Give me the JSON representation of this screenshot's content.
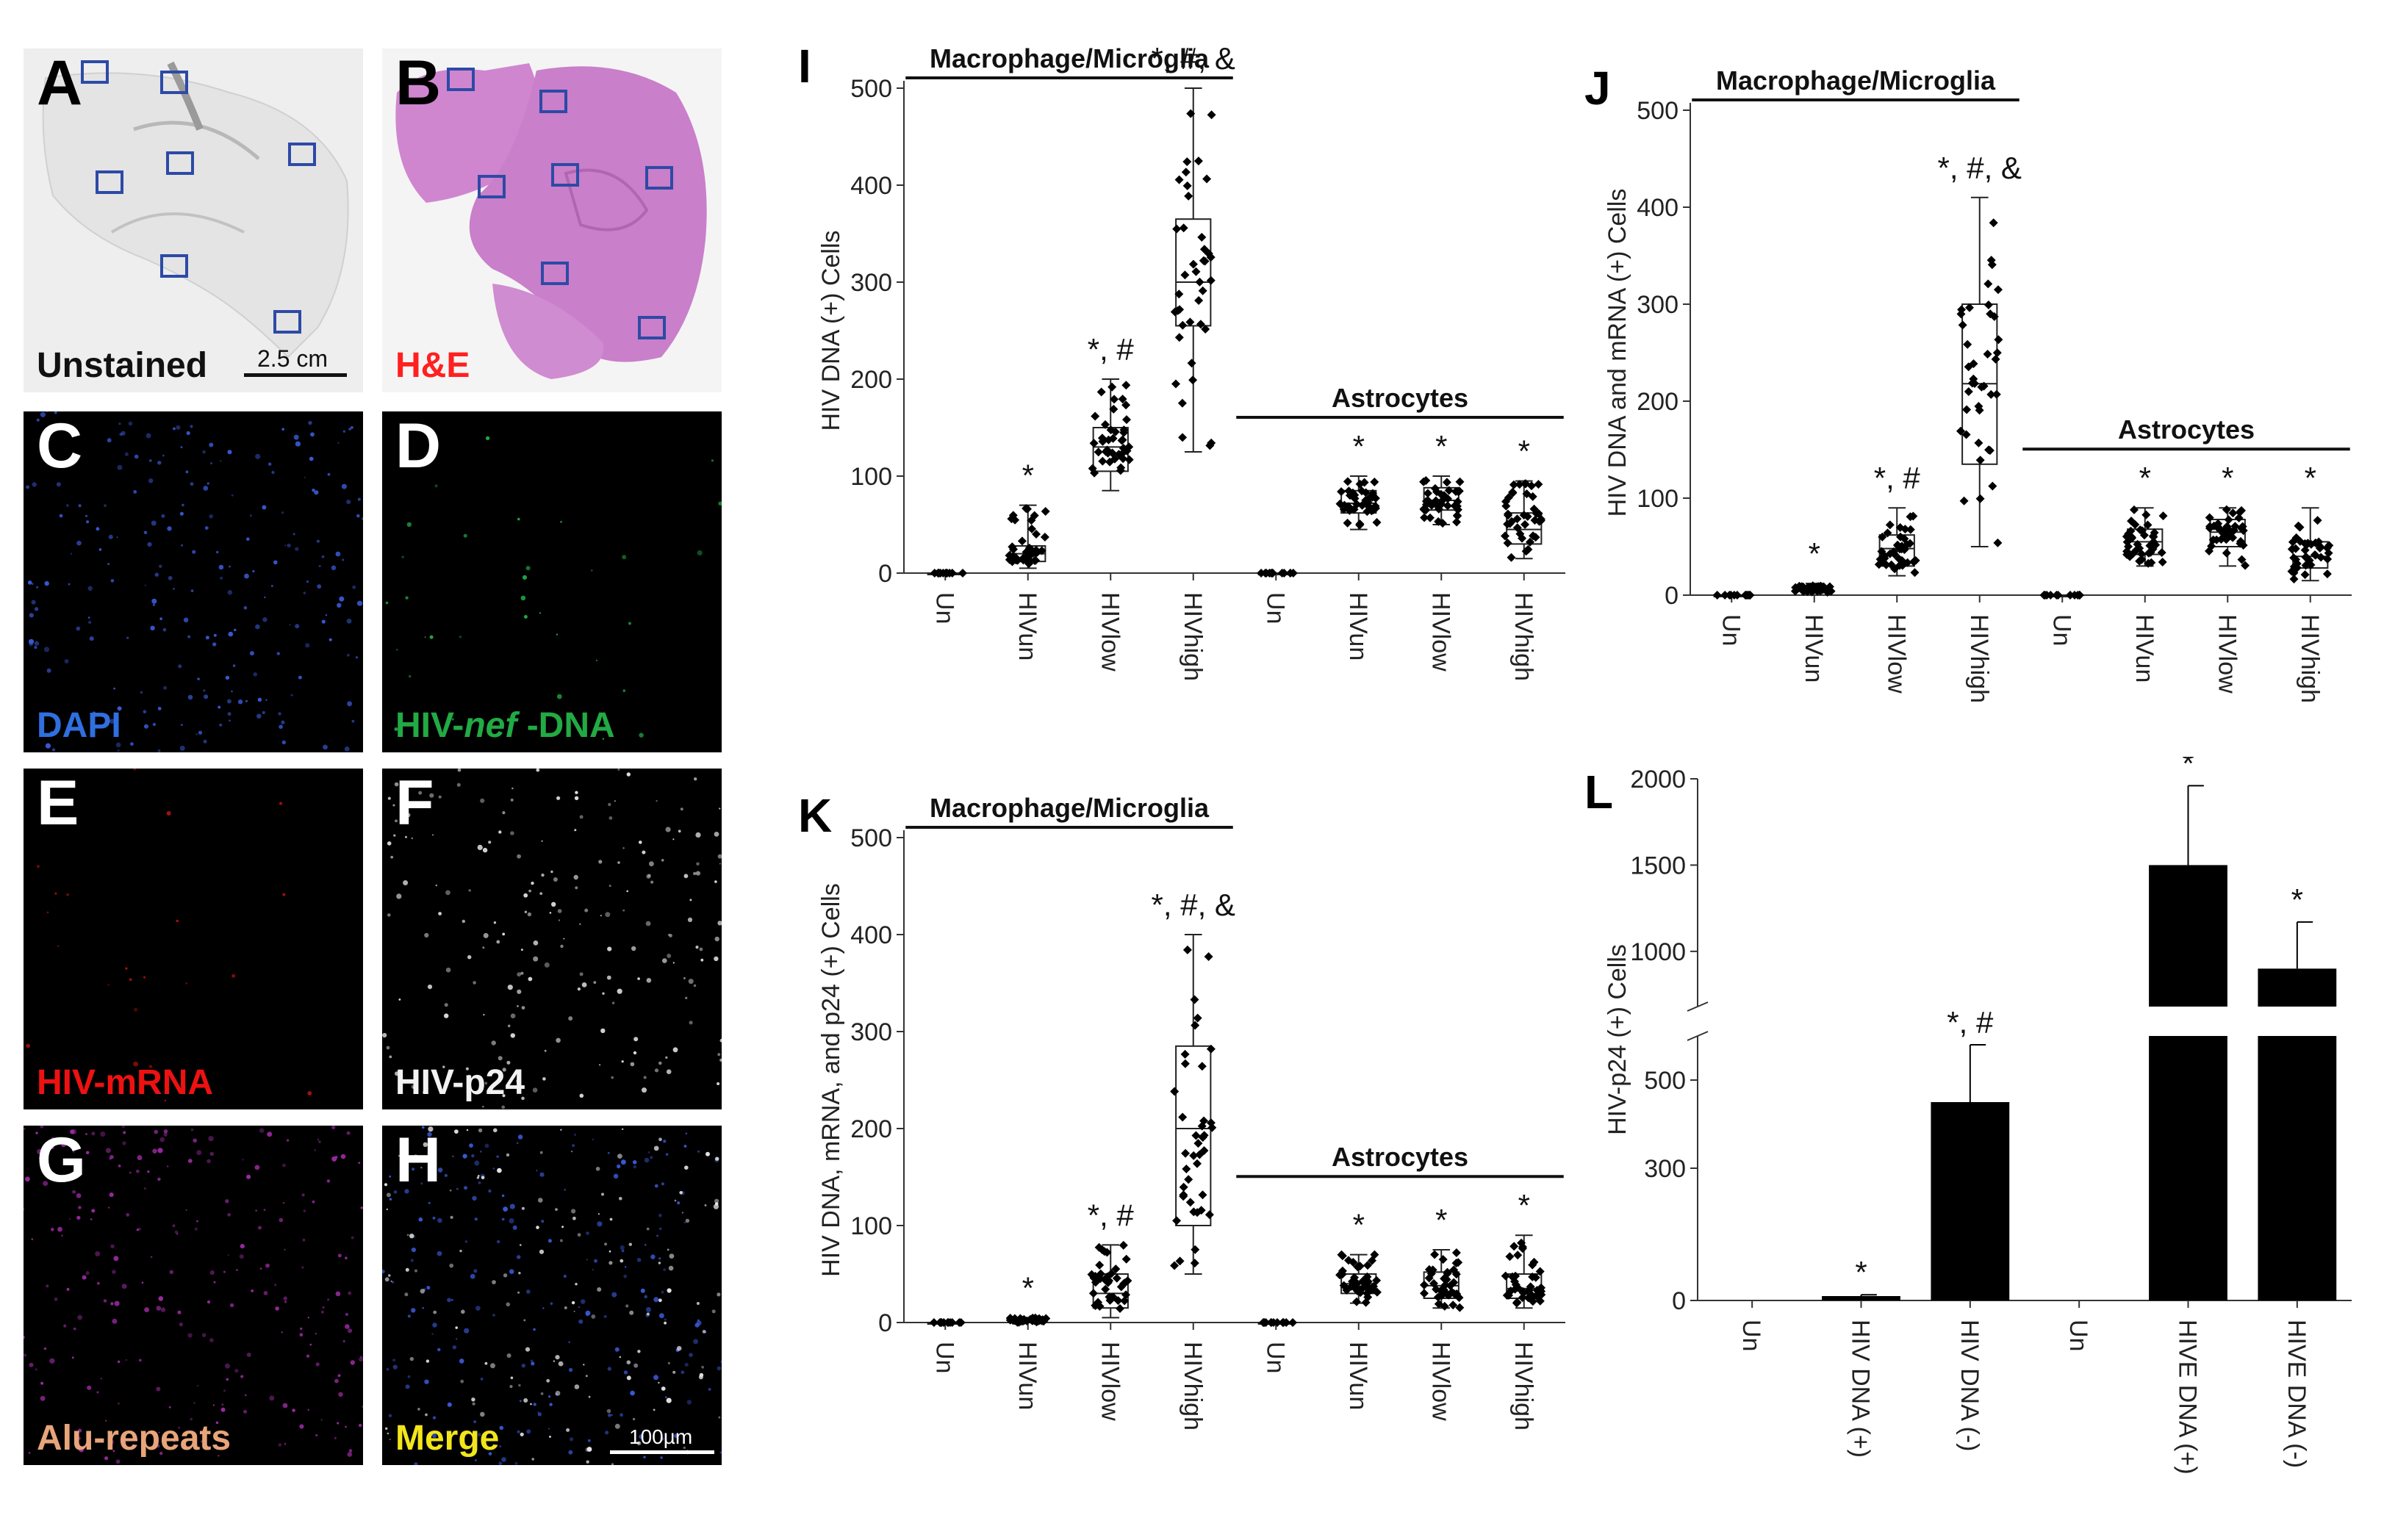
{
  "colors": {
    "roi_box": "#2d4aa6",
    "label_dapi": "#2f6fe0",
    "label_dna": "#22aa44",
    "label_mrna": "#ee1111",
    "label_p24": "#f2f2f2",
    "label_alu": "#e8a47a",
    "label_merge": "#f2e51a",
    "label_he": "#ff2020",
    "he_tissue": "#c97fc9"
  },
  "tiles": {
    "A": {
      "letter": "A",
      "label": "Unstained",
      "scale": "2.5 cm"
    },
    "B": {
      "letter": "B",
      "label": "H&E"
    },
    "C": {
      "letter": "C",
      "label": "DAPI"
    },
    "D": {
      "letter": "D",
      "label_pre": "HIV-",
      "label_italic": "nef",
      "label_post": " -DNA"
    },
    "E": {
      "letter": "E",
      "label": "HIV-mRNA"
    },
    "F": {
      "letter": "F",
      "label": "HIV-p24"
    },
    "G": {
      "letter": "G",
      "label": "Alu-repeats"
    },
    "H": {
      "letter": "H",
      "label": "Merge",
      "scale": "100µm"
    }
  },
  "chart_data": [
    {
      "panel": "I",
      "type": "scatter",
      "ylabel": "HIV DNA (+) Cells",
      "ylim": [
        0,
        500
      ],
      "yticks": [
        0,
        100,
        200,
        300,
        400,
        500
      ],
      "categories": [
        "Un",
        "HIVun",
        "HIVlow",
        "HIVhigh",
        "Un",
        "HIVun",
        "HIVlow",
        "HIVhigh"
      ],
      "groups": [
        {
          "label": "Macrophage/Microglia",
          "from": 0,
          "to": 3
        },
        {
          "label": "Astrocytes",
          "from": 4,
          "to": 7
        }
      ],
      "boxes": [
        {
          "min": 0,
          "q1": 0,
          "median": 0,
          "q3": 0,
          "max": 0
        },
        {
          "min": 5,
          "q1": 12,
          "median": 20,
          "q3": 28,
          "max": 70
        },
        {
          "min": 85,
          "q1": 105,
          "median": 130,
          "q3": 150,
          "max": 200
        },
        {
          "min": 125,
          "q1": 255,
          "median": 300,
          "q3": 365,
          "max": 500
        },
        {
          "min": 0,
          "q1": 0,
          "median": 0,
          "q3": 0,
          "max": 0
        },
        {
          "min": 45,
          "q1": 62,
          "median": 72,
          "q3": 85,
          "max": 100
        },
        {
          "min": 50,
          "q1": 65,
          "median": 75,
          "q3": 88,
          "max": 100
        },
        {
          "min": 15,
          "q1": 30,
          "median": 45,
          "q3": 62,
          "max": 95
        }
      ],
      "annotations": [
        "",
        "*",
        "*, #",
        "*, #, &",
        "",
        "*",
        "*",
        "*"
      ]
    },
    {
      "panel": "J",
      "type": "scatter",
      "ylabel": "HIV DNA and mRNA (+) Cells",
      "ylim": [
        0,
        500
      ],
      "yticks": [
        0,
        100,
        200,
        300,
        400,
        500
      ],
      "categories": [
        "Un",
        "HIVun",
        "HIVlow",
        "HIVhigh",
        "Un",
        "HIVun",
        "HIVlow",
        "HIVhigh"
      ],
      "groups": [
        {
          "label": "Macrophage/Microglia",
          "from": 0,
          "to": 3
        },
        {
          "label": "Astrocytes",
          "from": 4,
          "to": 7
        }
      ],
      "boxes": [
        {
          "min": 0,
          "q1": 0,
          "median": 0,
          "q3": 0,
          "max": 0
        },
        {
          "min": 2,
          "q1": 4,
          "median": 7,
          "q3": 9,
          "max": 12
        },
        {
          "min": 20,
          "q1": 30,
          "median": 48,
          "q3": 62,
          "max": 90
        },
        {
          "min": 50,
          "q1": 135,
          "median": 218,
          "q3": 300,
          "max": 410
        },
        {
          "min": 0,
          "q1": 0,
          "median": 0,
          "q3": 0,
          "max": 0
        },
        {
          "min": 30,
          "q1": 42,
          "median": 55,
          "q3": 68,
          "max": 90
        },
        {
          "min": 30,
          "q1": 50,
          "median": 65,
          "q3": 78,
          "max": 90
        },
        {
          "min": 15,
          "q1": 28,
          "median": 40,
          "q3": 55,
          "max": 90
        }
      ],
      "annotations": [
        "",
        "*",
        "*, #",
        "*, #, &",
        "",
        "*",
        "*",
        "*"
      ]
    },
    {
      "panel": "K",
      "type": "scatter",
      "ylabel": "HIV DNA, mRNA, and p24 (+) Cells",
      "ylim": [
        0,
        500
      ],
      "yticks": [
        0,
        100,
        200,
        300,
        400,
        500
      ],
      "categories": [
        "Un",
        "HIVun",
        "HIVlow",
        "HIVhigh",
        "Un",
        "HIVun",
        "HIVlow",
        "HIVhigh"
      ],
      "groups": [
        {
          "label": "Macrophage/Microglia",
          "from": 0,
          "to": 3
        },
        {
          "label": "Astrocytes",
          "from": 4,
          "to": 7
        }
      ],
      "boxes": [
        {
          "min": 0,
          "q1": 0,
          "median": 0,
          "q3": 0,
          "max": 0
        },
        {
          "min": 0,
          "q1": 1,
          "median": 2,
          "q3": 3,
          "max": 5
        },
        {
          "min": 5,
          "q1": 15,
          "median": 30,
          "q3": 50,
          "max": 80
        },
        {
          "min": 50,
          "q1": 100,
          "median": 200,
          "q3": 285,
          "max": 400
        },
        {
          "min": 0,
          "q1": 0,
          "median": 0,
          "q3": 0,
          "max": 0
        },
        {
          "min": 20,
          "q1": 30,
          "median": 40,
          "q3": 50,
          "max": 70
        },
        {
          "min": 15,
          "q1": 25,
          "median": 38,
          "q3": 52,
          "max": 75
        },
        {
          "min": 15,
          "q1": 25,
          "median": 35,
          "q3": 50,
          "max": 90
        }
      ],
      "annotations": [
        "",
        "*",
        "*, #",
        "*, #, &",
        "",
        "*",
        "*",
        "*"
      ]
    },
    {
      "panel": "L",
      "type": "bar",
      "ylabel": "HIV-p24 (+) Cells",
      "categories": [
        "Un",
        "HIV DNA (+)",
        "HIV DNA (-)",
        "Un",
        "HIVE DNA (+)",
        "HIVE DNA (-)"
      ],
      "values": [
        0,
        10,
        450,
        0,
        1500,
        900
      ],
      "errors": [
        0,
        3,
        130,
        0,
        460,
        270
      ],
      "annotations": [
        "",
        "*",
        "*, #",
        "",
        "*",
        "*"
      ],
      "yticks_lower": [
        0,
        300,
        500
      ],
      "yticks_upper": [
        1000,
        1500,
        2000
      ],
      "axis_break": true
    }
  ]
}
